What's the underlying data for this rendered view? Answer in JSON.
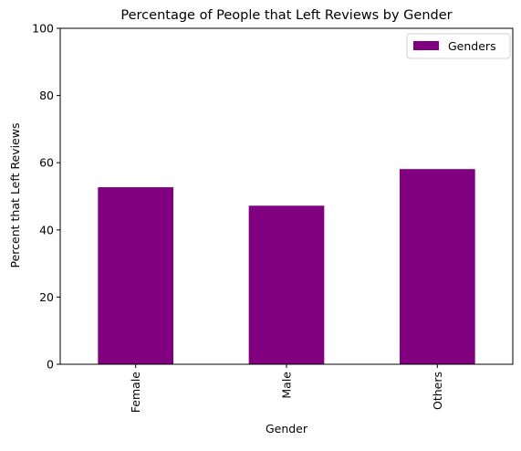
{
  "colors": {
    "bar": "#800080",
    "axis": "#000000",
    "background": "#ffffff",
    "legend_border": "#d0d0d0"
  },
  "chart_data": {
    "type": "bar",
    "title": "Percentage of People that Left Reviews by Gender",
    "xlabel": "Gender",
    "ylabel": "Percent that Left Reviews",
    "categories": [
      "Female",
      "Male",
      "Others"
    ],
    "series": [
      {
        "name": "Genders",
        "values": [
          52.7,
          47.2,
          58.1
        ]
      }
    ],
    "ylim": [
      0,
      100
    ],
    "yticks": [
      0,
      20,
      40,
      60,
      80,
      100
    ],
    "xtick_rotation": 90,
    "grid": false,
    "legend_position": "top-right"
  }
}
